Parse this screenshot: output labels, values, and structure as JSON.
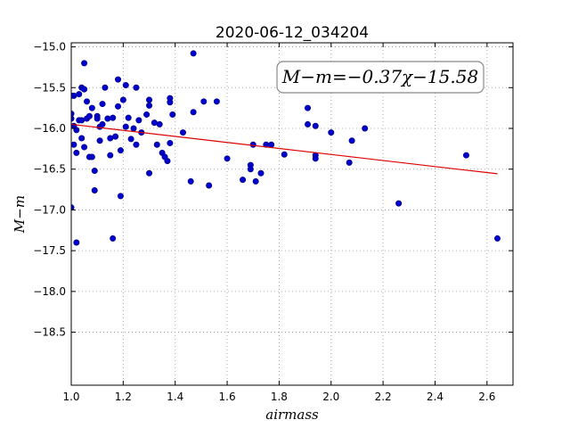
{
  "chart_data": {
    "type": "scatter",
    "title": "2020-06-12_034204",
    "xlabel": "airmass",
    "ylabel": "M−m",
    "xlim": [
      1.0,
      2.7
    ],
    "ylim": [
      -14.95,
      -19.15
    ],
    "y_inverted": true,
    "xticks": [
      1.0,
      1.2,
      1.4,
      1.6,
      1.8,
      2.0,
      2.2,
      2.4,
      2.6
    ],
    "xtick_labels": [
      "1.0",
      "1.2",
      "1.4",
      "1.6",
      "1.8",
      "2.0",
      "2.2",
      "2.4",
      "2.6"
    ],
    "yticks": [
      -15.0,
      -15.5,
      -16.0,
      -16.5,
      -17.0,
      -17.5,
      -18.0,
      -18.5
    ],
    "ytick_labels": [
      "−15.0",
      "−15.5",
      "−16.0",
      "−16.5",
      "−17.0",
      "−17.5",
      "−18.0",
      "−18.5"
    ],
    "grid": true,
    "annotation": "M−m=−0.37χ−15.58",
    "colors": {
      "points": "#0000cc",
      "fit": "#dd0000"
    },
    "fit_line": {
      "slope": -0.37,
      "intercept": -15.58,
      "x_range": [
        1.0,
        2.64
      ]
    },
    "series": [
      {
        "points": [
          [
            1.0,
            -15.82
          ],
          [
            1.0,
            -15.88
          ],
          [
            1.0,
            -16.97
          ],
          [
            1.0,
            -15.6
          ],
          [
            1.01,
            -15.6
          ],
          [
            1.01,
            -16.2
          ],
          [
            1.01,
            -15.97
          ],
          [
            1.02,
            -16.02
          ],
          [
            1.02,
            -16.3
          ],
          [
            1.02,
            -17.4
          ],
          [
            1.03,
            -15.58
          ],
          [
            1.03,
            -15.9
          ],
          [
            1.04,
            -15.5
          ],
          [
            1.04,
            -15.9
          ],
          [
            1.04,
            -16.12
          ],
          [
            1.05,
            -16.23
          ],
          [
            1.05,
            -15.52
          ],
          [
            1.05,
            -15.2
          ],
          [
            1.06,
            -15.67
          ],
          [
            1.06,
            -15.88
          ],
          [
            1.07,
            -16.35
          ],
          [
            1.07,
            -15.85
          ],
          [
            1.08,
            -15.75
          ],
          [
            1.08,
            -16.35
          ],
          [
            1.09,
            -16.52
          ],
          [
            1.09,
            -16.76
          ],
          [
            1.1,
            -15.85
          ],
          [
            1.1,
            -15.88
          ],
          [
            1.11,
            -15.98
          ],
          [
            1.11,
            -16.15
          ],
          [
            1.12,
            -15.95
          ],
          [
            1.12,
            -15.7
          ],
          [
            1.13,
            -15.5
          ],
          [
            1.14,
            -15.88
          ],
          [
            1.15,
            -16.33
          ],
          [
            1.15,
            -16.12
          ],
          [
            1.16,
            -15.87
          ],
          [
            1.16,
            -17.35
          ],
          [
            1.17,
            -16.1
          ],
          [
            1.18,
            -15.73
          ],
          [
            1.18,
            -15.4
          ],
          [
            1.19,
            -16.83
          ],
          [
            1.19,
            -16.27
          ],
          [
            1.2,
            -15.65
          ],
          [
            1.21,
            -15.47
          ],
          [
            1.21,
            -15.98
          ],
          [
            1.22,
            -15.87
          ],
          [
            1.23,
            -16.13
          ],
          [
            1.24,
            -16.0
          ],
          [
            1.25,
            -15.5
          ],
          [
            1.25,
            -16.2
          ],
          [
            1.26,
            -15.9
          ],
          [
            1.27,
            -16.05
          ],
          [
            1.29,
            -15.83
          ],
          [
            1.3,
            -16.55
          ],
          [
            1.3,
            -15.65
          ],
          [
            1.3,
            -15.72
          ],
          [
            1.32,
            -15.93
          ],
          [
            1.33,
            -16.2
          ],
          [
            1.34,
            -15.95
          ],
          [
            1.35,
            -16.3
          ],
          [
            1.36,
            -16.35
          ],
          [
            1.37,
            -16.4
          ],
          [
            1.38,
            -15.63
          ],
          [
            1.38,
            -15.68
          ],
          [
            1.38,
            -16.18
          ],
          [
            1.39,
            -15.83
          ],
          [
            1.43,
            -16.05
          ],
          [
            1.46,
            -16.65
          ],
          [
            1.47,
            -15.8
          ],
          [
            1.47,
            -15.08
          ],
          [
            1.51,
            -15.67
          ],
          [
            1.53,
            -16.7
          ],
          [
            1.56,
            -15.67
          ],
          [
            1.6,
            -16.37
          ],
          [
            1.66,
            -16.63
          ],
          [
            1.69,
            -16.45
          ],
          [
            1.69,
            -16.5
          ],
          [
            1.7,
            -16.2
          ],
          [
            1.71,
            -16.65
          ],
          [
            1.73,
            -16.55
          ],
          [
            1.75,
            -16.2
          ],
          [
            1.77,
            -16.2
          ],
          [
            1.82,
            -16.32
          ],
          [
            1.91,
            -15.75
          ],
          [
            1.91,
            -15.95
          ],
          [
            1.94,
            -15.97
          ],
          [
            1.94,
            -16.33
          ],
          [
            1.94,
            -16.37
          ],
          [
            2.0,
            -16.05
          ],
          [
            2.07,
            -16.42
          ],
          [
            2.08,
            -16.15
          ],
          [
            2.13,
            -16.0
          ],
          [
            2.26,
            -16.92
          ],
          [
            2.52,
            -16.33
          ],
          [
            2.64,
            -17.35
          ]
        ]
      }
    ]
  }
}
